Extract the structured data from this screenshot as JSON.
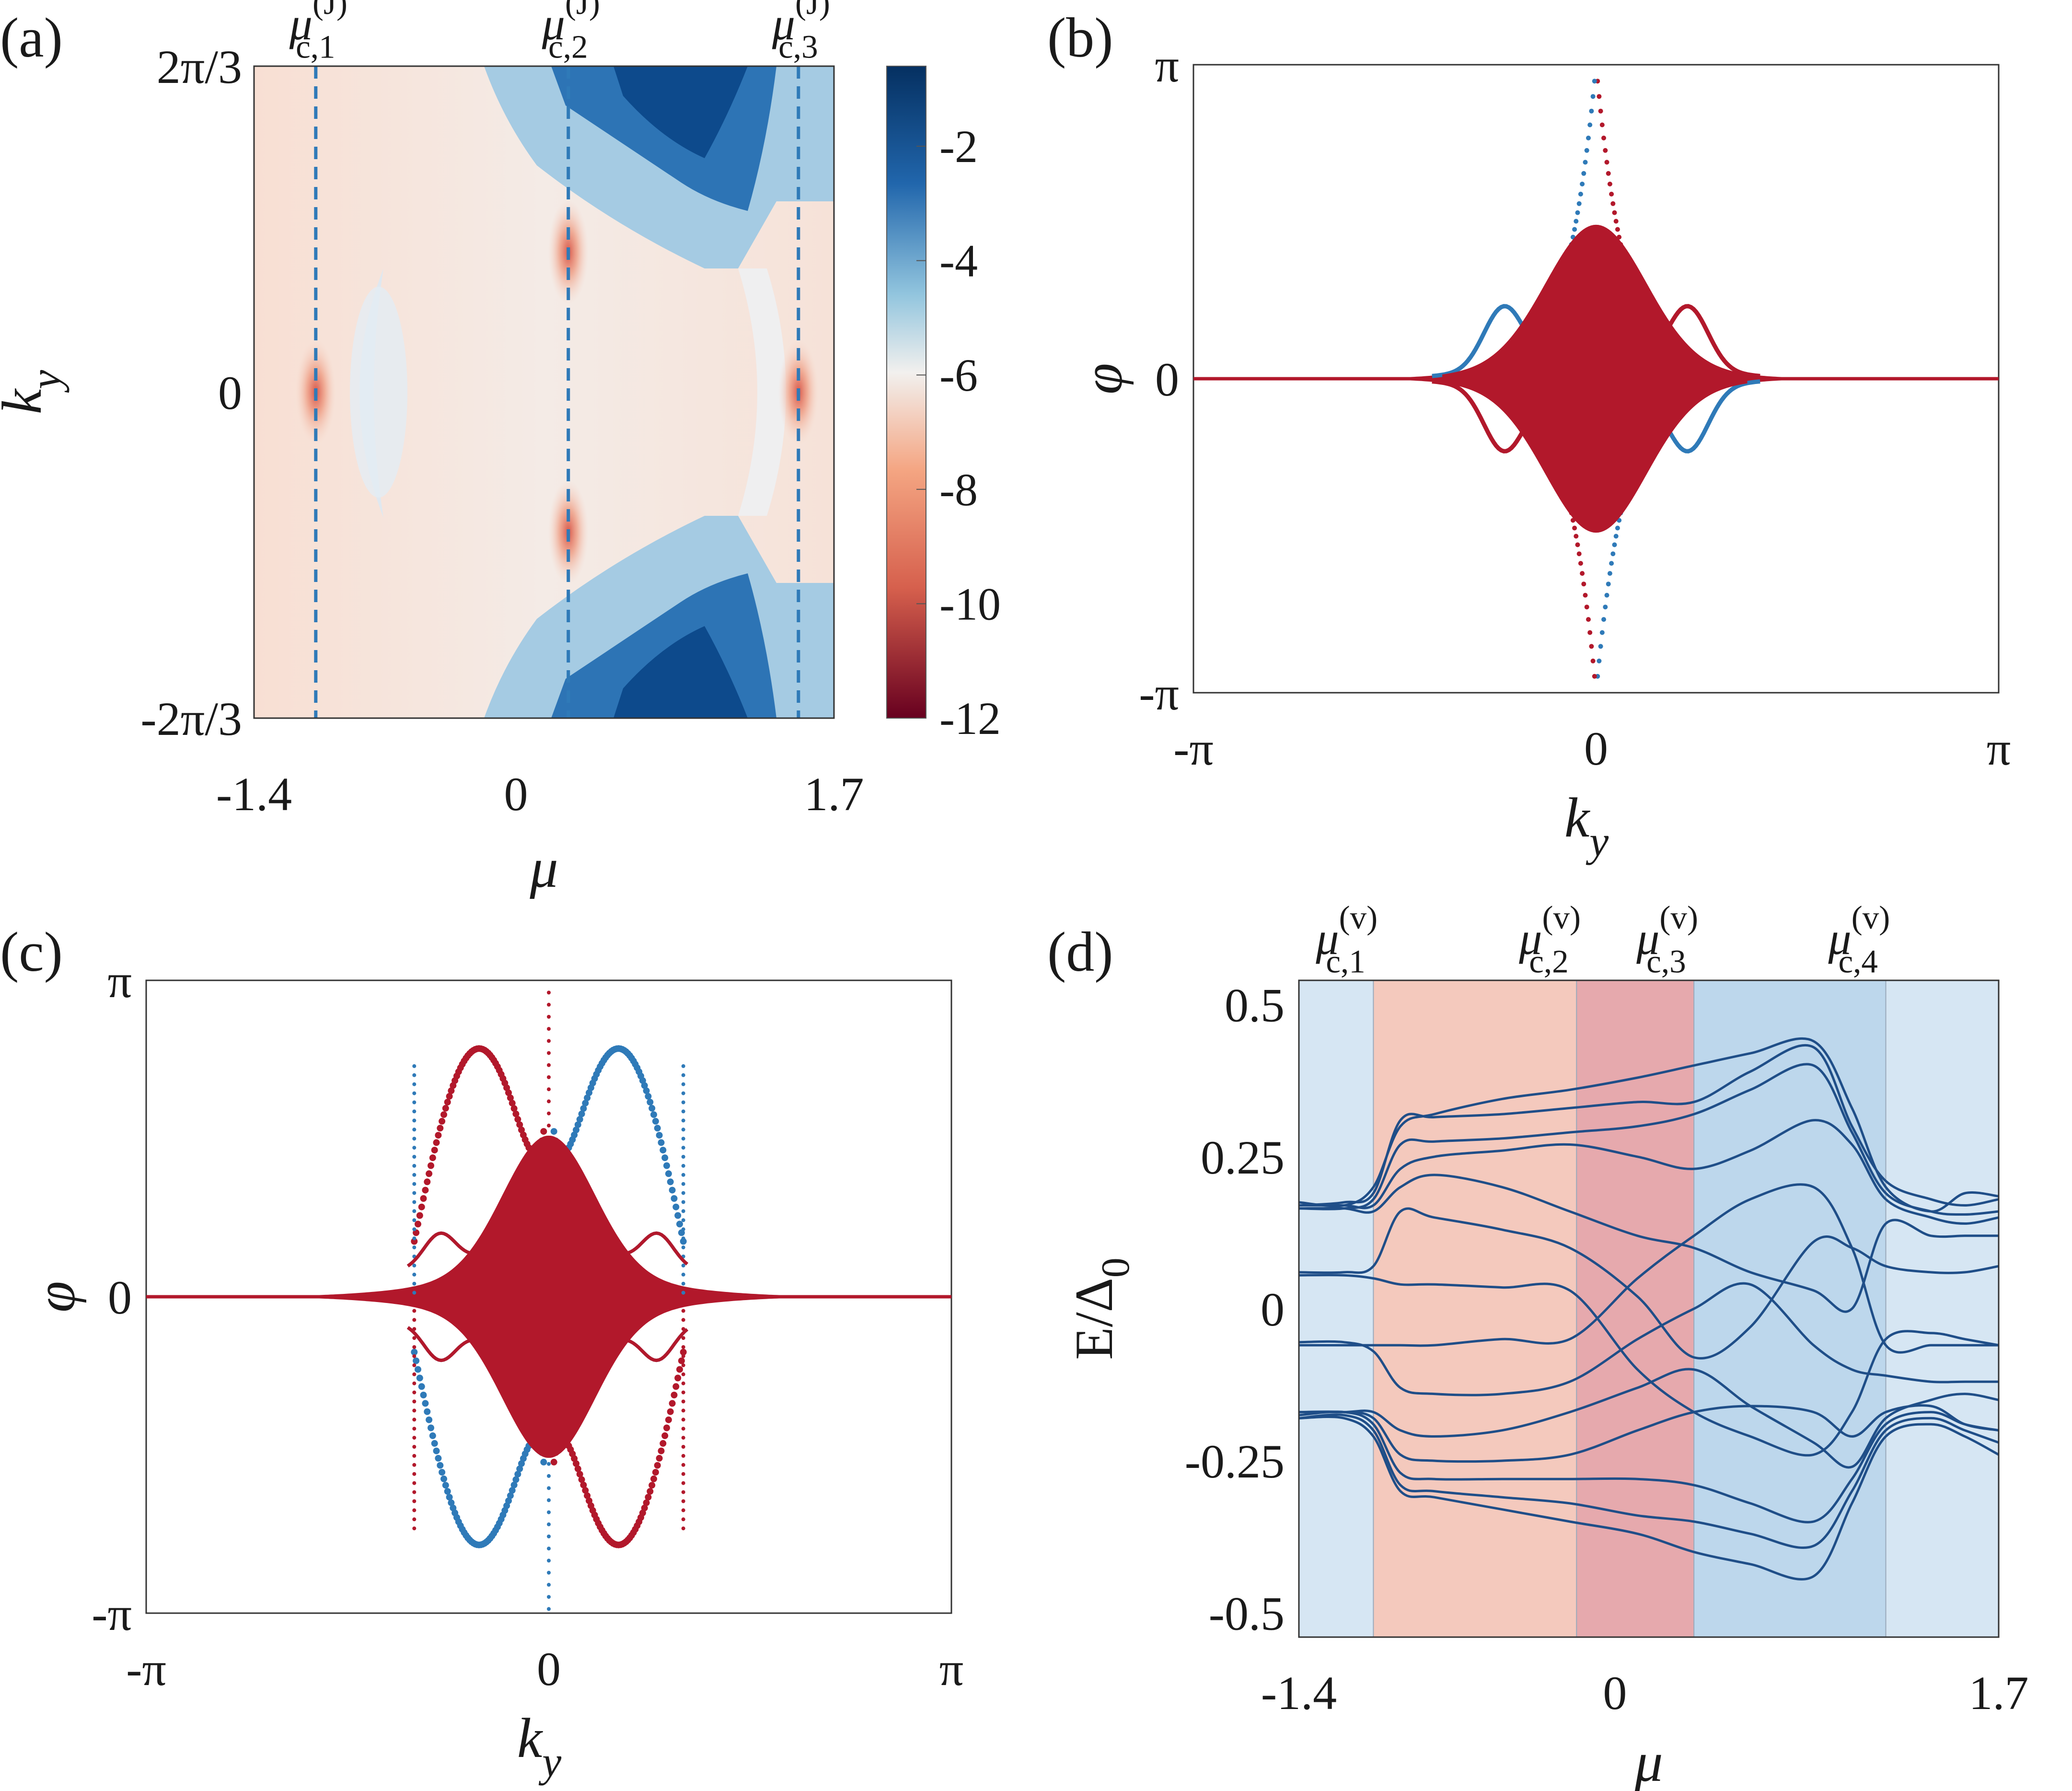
{
  "colors": {
    "red": "#b2182b",
    "blue": "#2f7ab8",
    "dark_blue": "#053061",
    "pale_red": "#f4c9bd",
    "light_blue": "#bdd7ec",
    "pale_blue": "#d6e6f3",
    "mid_red": "#e6a9ad",
    "band_line": "#1f4e88"
  },
  "chart_data": [
    {
      "panel": "a",
      "panel_label": "(a)",
      "type": "heatmap",
      "xlabel": "μ",
      "ylabel": "k",
      "ylabel_sub": "y",
      "x_range": [
        -1.4,
        1.7
      ],
      "y_range": [
        -2.0944,
        2.0944
      ],
      "x_ticks": [
        {
          "value": -1.4,
          "label": "-1.4"
        },
        {
          "value": 0,
          "label": "0"
        },
        {
          "value": 1.7,
          "label": "1.7"
        }
      ],
      "y_ticks": [
        {
          "value": 2.0944,
          "label": "2π/3"
        },
        {
          "value": 0,
          "label": "0"
        },
        {
          "value": -2.0944,
          "label": "-2π/3"
        }
      ],
      "colorbar": {
        "range": [
          -12,
          -0.6
        ],
        "ticks": [
          {
            "value": -2,
            "label": "-2"
          },
          {
            "value": -4,
            "label": "-4"
          },
          {
            "value": -6,
            "label": "-6"
          },
          {
            "value": -8,
            "label": "-8"
          },
          {
            "value": -10,
            "label": "-10"
          },
          {
            "value": -12,
            "label": "-12"
          }
        ]
      },
      "critical_lines": [
        {
          "mu": -1.07,
          "symbol": "μ",
          "sub": "c,1",
          "sup": "(J)"
        },
        {
          "mu": 0.28,
          "symbol": "μ",
          "sub": "c,2",
          "sup": "(J)"
        },
        {
          "mu": 1.51,
          "symbol": "μ",
          "sub": "c,3",
          "sup": "(J)"
        }
      ],
      "hotspots": [
        {
          "mu": -1.07,
          "ky": 0
        },
        {
          "mu": 0.28,
          "ky": 0.9
        },
        {
          "mu": 0.28,
          "ky": -0.9
        },
        {
          "mu": 1.51,
          "ky": 0
        }
      ]
    },
    {
      "panel": "b",
      "panel_label": "(b)",
      "type": "scatter",
      "xlabel": "k",
      "xlabel_sub": "y",
      "ylabel": "φ",
      "x_range": [
        -3.1416,
        3.1416
      ],
      "y_range": [
        -3.1416,
        3.1416
      ],
      "x_ticks": [
        {
          "value": -3.1416,
          "label": "-π"
        },
        {
          "value": 0,
          "label": "0"
        },
        {
          "value": 3.1416,
          "label": "π"
        }
      ],
      "y_ticks": [
        {
          "value": 3.1416,
          "label": "π"
        },
        {
          "value": 0,
          "label": "0"
        },
        {
          "value": -3.1416,
          "label": "-π"
        }
      ],
      "envelope": {
        "peak": 1.42,
        "width": 0.55,
        "wing": 0.12,
        "wing_width": 1.9
      },
      "cusp": {
        "peak": 3.14,
        "decay": 0.95
      },
      "bumps": {
        "center": 0.72,
        "height": 0.62,
        "width": 0.22
      }
    },
    {
      "panel": "c",
      "panel_label": "(c)",
      "type": "scatter",
      "xlabel": "k",
      "xlabel_sub": "y",
      "ylabel": "φ",
      "x_range": [
        -3.1416,
        3.1416
      ],
      "y_range": [
        -3.1416,
        3.1416
      ],
      "x_ticks": [
        {
          "value": -3.1416,
          "label": "-π"
        },
        {
          "value": 0,
          "label": "0"
        },
        {
          "value": 3.1416,
          "label": "π"
        }
      ],
      "y_ticks": [
        {
          "value": 3.1416,
          "label": "π"
        },
        {
          "value": 0,
          "label": "0"
        },
        {
          "value": -3.1416,
          "label": "-π"
        }
      ],
      "envelope": {
        "peak": 1.42,
        "width": 0.5,
        "wing": 0.18,
        "wing_width": 2.2
      },
      "outer_branch": {
        "edge": 1.05,
        "max": 2.55,
        "min_center": 1.05,
        "cusp": 3.14
      }
    },
    {
      "panel": "d",
      "panel_label": "(d)",
      "type": "line",
      "xlabel": "μ",
      "ylabel": "E/Δ",
      "ylabel_sub": "0",
      "x_range": [
        -1.4,
        1.7
      ],
      "y_range": [
        -0.54,
        0.54
      ],
      "x_ticks": [
        {
          "value": -1.4,
          "label": "-1.4"
        },
        {
          "value": 0,
          "label": "0"
        },
        {
          "value": 1.7,
          "label": "1.7"
        }
      ],
      "y_ticks": [
        {
          "value": 0.5,
          "label": "0.5"
        },
        {
          "value": 0.25,
          "label": "0.25"
        },
        {
          "value": 0,
          "label": "0"
        },
        {
          "value": -0.25,
          "label": "-0.25"
        },
        {
          "value": -0.5,
          "label": "-0.5"
        }
      ],
      "regions": [
        {
          "from": -1.4,
          "to": -1.07,
          "tone": "pale_blue"
        },
        {
          "from": -1.07,
          "to": -0.17,
          "tone": "pale_red"
        },
        {
          "from": -0.17,
          "to": 0.35,
          "tone": "mid_red"
        },
        {
          "from": 0.35,
          "to": 1.2,
          "tone": "light_blue"
        },
        {
          "from": 1.2,
          "to": 1.7,
          "tone": "pale_blue"
        }
      ],
      "critical_labels": [
        {
          "mu": -1.07,
          "symbol": "μ",
          "sub": "c,1",
          "sup": "(v)"
        },
        {
          "mu": -0.17,
          "symbol": "μ",
          "sub": "c,2",
          "sup": "(v)"
        },
        {
          "mu": 0.35,
          "symbol": "μ",
          "sub": "c,3",
          "sup": "(v)"
        },
        {
          "mu": 1.2,
          "symbol": "μ",
          "sub": "c,4",
          "sup": "(v)"
        }
      ],
      "x": [
        -1.4,
        -1.2,
        -1.07,
        -0.95,
        -0.8,
        -0.5,
        -0.2,
        0.1,
        0.35,
        0.6,
        0.88,
        1.05,
        1.2,
        1.4,
        1.55,
        1.7
      ],
      "series": [
        {
          "name": "E1",
          "values": [
            0.175,
            0.17,
            0.2,
            0.3,
            0.32,
            0.345,
            0.36,
            0.38,
            0.4,
            0.42,
            0.44,
            0.33,
            0.2,
            0.16,
            0.19,
            0.185
          ]
        },
        {
          "name": "E2",
          "values": [
            0.17,
            0.175,
            0.19,
            0.31,
            0.315,
            0.32,
            0.33,
            0.34,
            0.34,
            0.39,
            0.43,
            0.3,
            0.21,
            0.18,
            0.17,
            0.18
          ]
        },
        {
          "name": "E3",
          "values": [
            0.165,
            0.165,
            0.18,
            0.27,
            0.275,
            0.28,
            0.29,
            0.3,
            0.32,
            0.36,
            0.4,
            0.29,
            0.19,
            0.16,
            0.155,
            0.16
          ]
        },
        {
          "name": "E4",
          "values": [
            0.17,
            0.17,
            0.17,
            0.23,
            0.25,
            0.26,
            0.27,
            0.25,
            0.23,
            0.26,
            0.31,
            0.27,
            0.18,
            0.15,
            0.14,
            0.15
          ]
        },
        {
          "name": "E5",
          "values": [
            0.165,
            0.165,
            0.16,
            0.2,
            0.22,
            0.2,
            0.16,
            0.12,
            0.1,
            0.06,
            0.03,
            0.0,
            0.14,
            0.12,
            0.12,
            0.12
          ]
        },
        {
          "name": "E6",
          "values": [
            0.06,
            0.06,
            0.07,
            0.16,
            0.15,
            0.13,
            0.1,
            0.02,
            -0.08,
            -0.03,
            0.11,
            0.1,
            0.07,
            0.06,
            0.06,
            0.07
          ]
        },
        {
          "name": "E7",
          "values": [
            0.055,
            0.055,
            0.05,
            0.04,
            0.04,
            0.035,
            0.03,
            -0.1,
            -0.17,
            -0.21,
            -0.24,
            -0.17,
            -0.05,
            -0.04,
            -0.05,
            -0.06
          ]
        },
        {
          "name": "E8",
          "values": [
            -0.06,
            -0.06,
            -0.06,
            -0.06,
            -0.06,
            -0.05,
            -0.05,
            0.05,
            0.12,
            0.18,
            0.2,
            0.1,
            -0.06,
            -0.06,
            -0.06,
            -0.06
          ]
        },
        {
          "name": "E9",
          "values": [
            -0.055,
            -0.055,
            -0.07,
            -0.13,
            -0.14,
            -0.14,
            -0.12,
            -0.05,
            0.0,
            0.04,
            -0.06,
            -0.1,
            -0.11,
            -0.12,
            -0.12,
            -0.12
          ]
        },
        {
          "name": "E10",
          "values": [
            -0.17,
            -0.17,
            -0.17,
            -0.2,
            -0.21,
            -0.2,
            -0.17,
            -0.13,
            -0.1,
            -0.16,
            -0.22,
            -0.26,
            -0.18,
            -0.15,
            -0.14,
            -0.15
          ]
        },
        {
          "name": "E11",
          "values": [
            -0.17,
            -0.17,
            -0.18,
            -0.24,
            -0.25,
            -0.25,
            -0.24,
            -0.2,
            -0.17,
            -0.16,
            -0.17,
            -0.21,
            -0.17,
            -0.16,
            -0.19,
            -0.2
          ]
        },
        {
          "name": "E12",
          "values": [
            -0.175,
            -0.17,
            -0.19,
            -0.27,
            -0.28,
            -0.28,
            -0.28,
            -0.28,
            -0.29,
            -0.32,
            -0.35,
            -0.28,
            -0.19,
            -0.17,
            -0.19,
            -0.2
          ]
        },
        {
          "name": "E13",
          "values": [
            -0.18,
            -0.175,
            -0.2,
            -0.29,
            -0.3,
            -0.31,
            -0.32,
            -0.34,
            -0.35,
            -0.37,
            -0.39,
            -0.3,
            -0.2,
            -0.18,
            -0.2,
            -0.22
          ]
        },
        {
          "name": "E14",
          "values": [
            -0.18,
            -0.18,
            -0.21,
            -0.3,
            -0.31,
            -0.33,
            -0.35,
            -0.37,
            -0.4,
            -0.42,
            -0.44,
            -0.32,
            -0.21,
            -0.19,
            -0.21,
            -0.24
          ]
        }
      ]
    }
  ]
}
